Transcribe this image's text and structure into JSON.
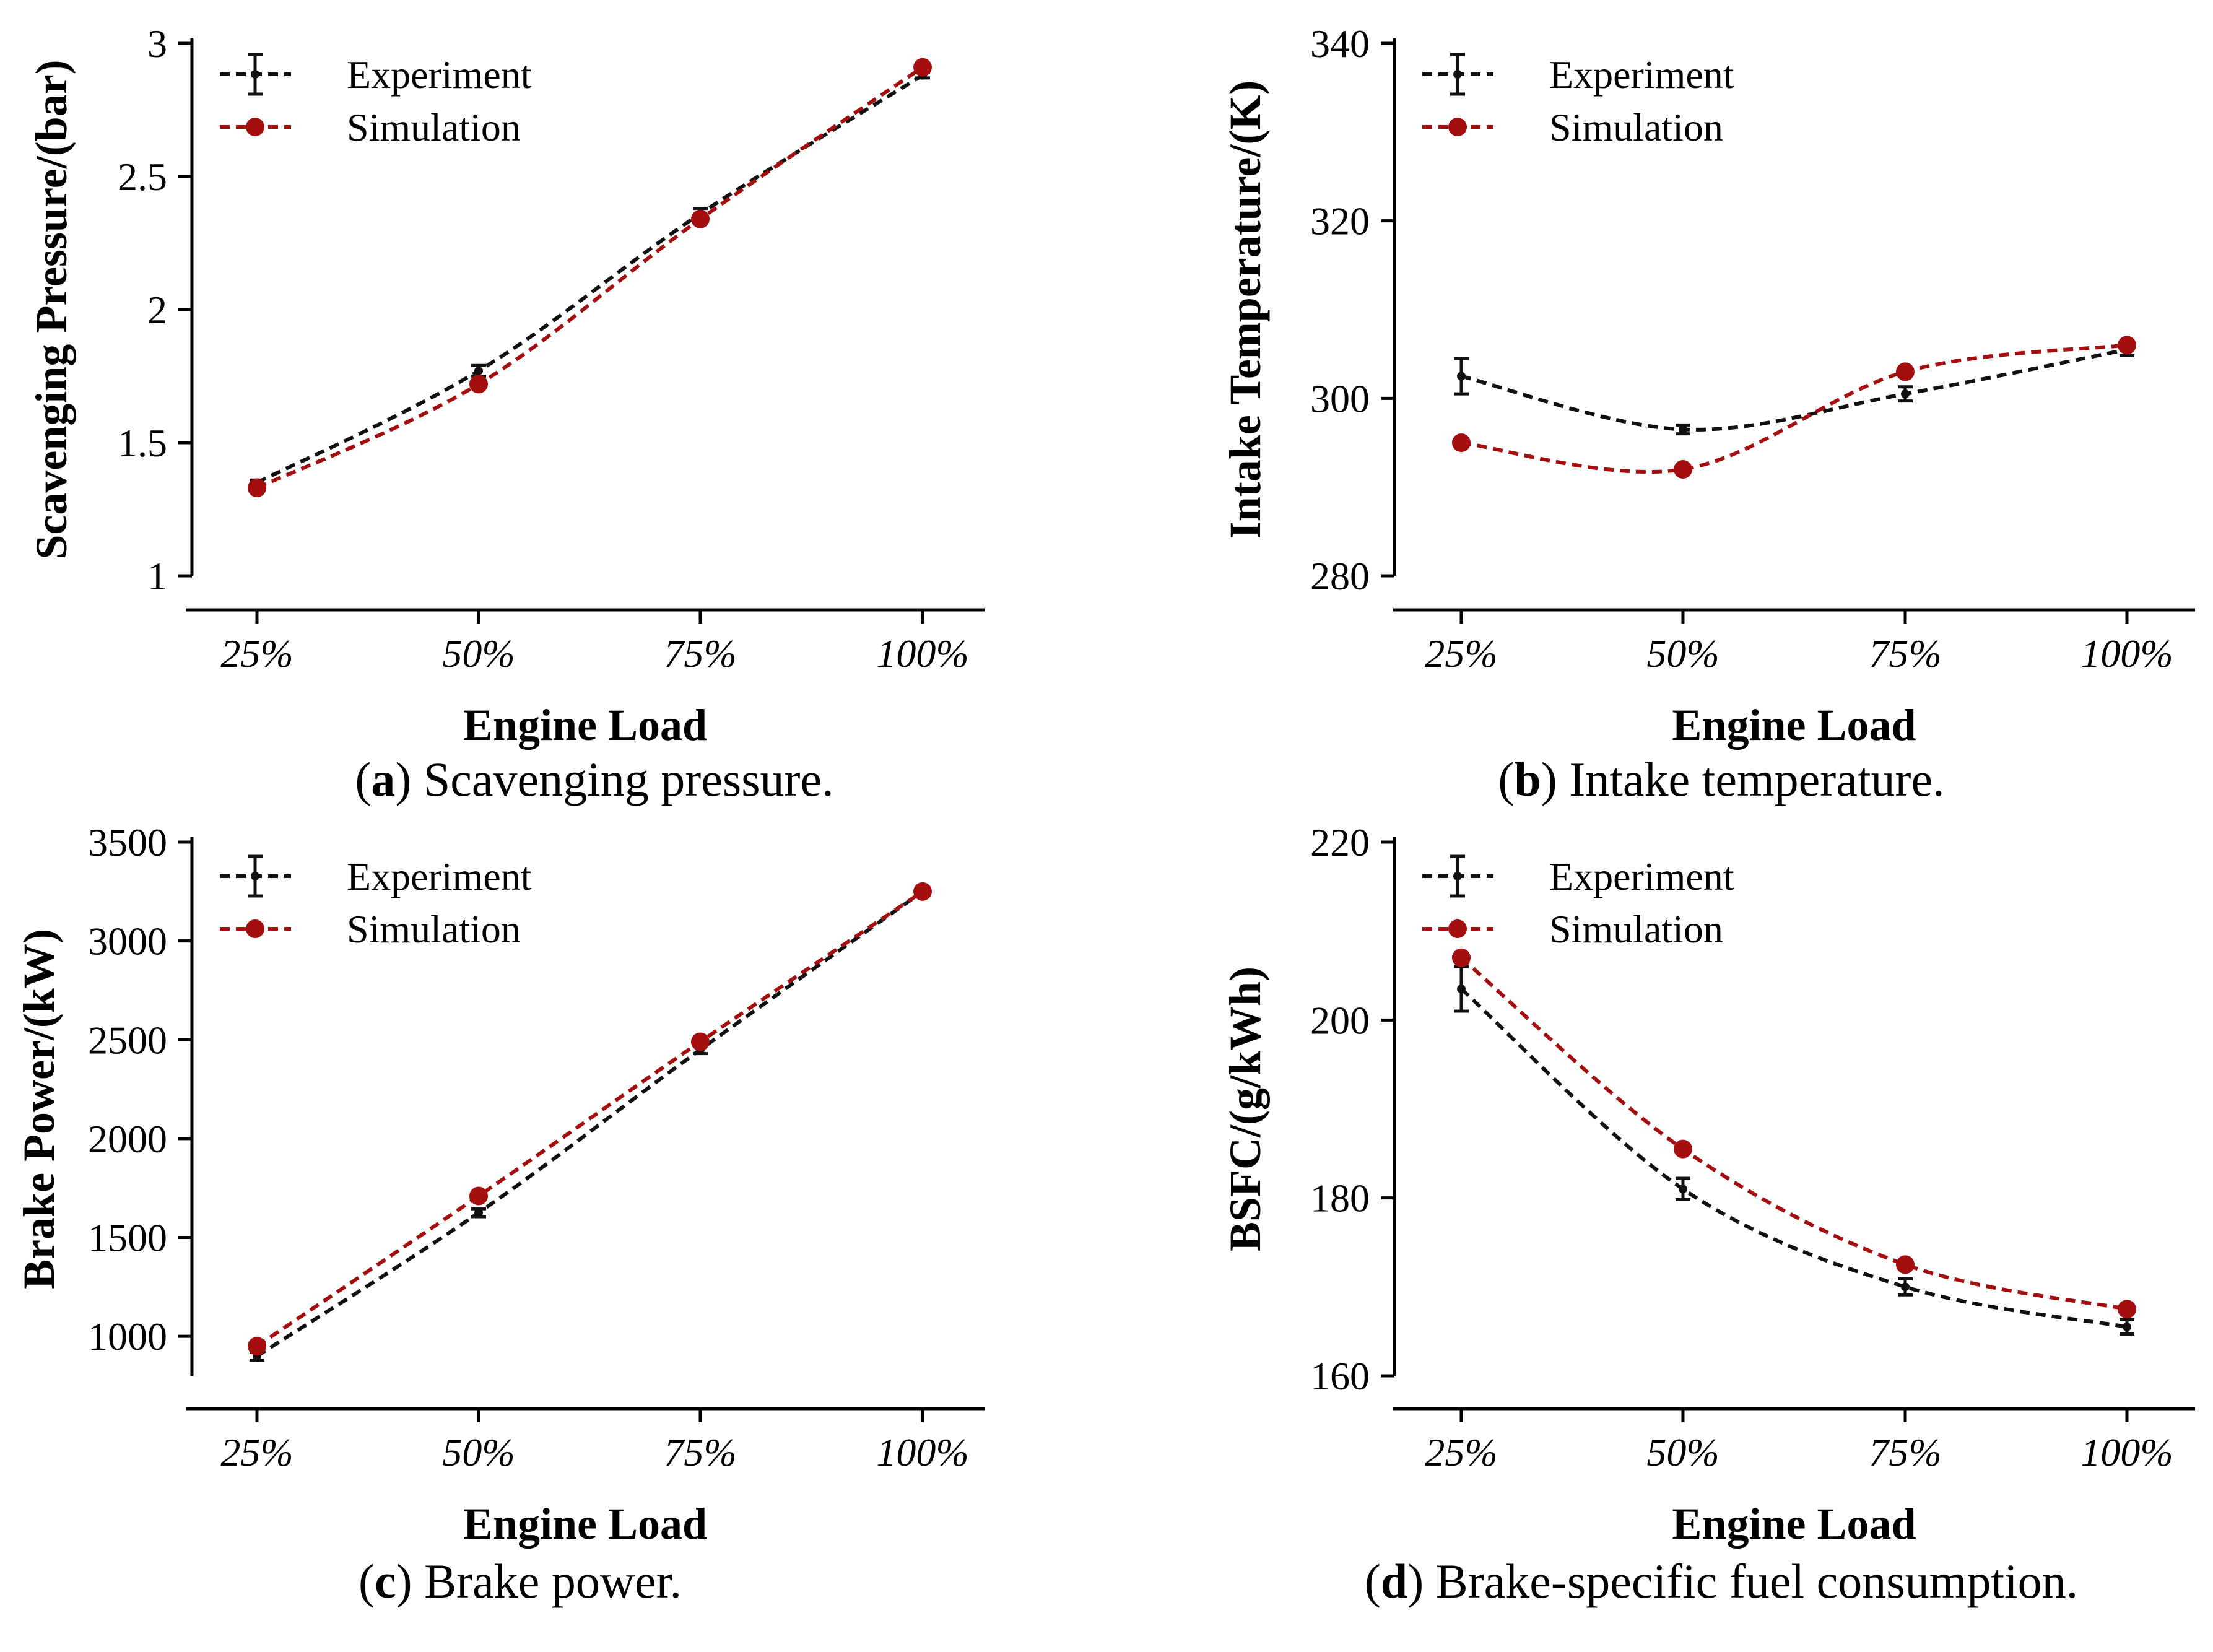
{
  "colors": {
    "experiment": "#111111",
    "simulation": "#a50e0e",
    "axis": "#000000"
  },
  "legend": {
    "experiment": "Experiment",
    "simulation": "Simulation"
  },
  "chart_data": [
    {
      "type": "line",
      "id": "a",
      "caption_letter": "a",
      "caption_text": "Scavenging pressure.",
      "xlabel": "Engine Load",
      "ylabel": "Scavenging Pressure/(bar)",
      "categories": [
        "25%",
        "50%",
        "75%",
        "100%"
      ],
      "ylim": [
        1,
        3
      ],
      "yticks": [
        1,
        1.5,
        2,
        2.5,
        3
      ],
      "ytick_labels": [
        "1",
        "1.5",
        "2",
        "2.5",
        "3"
      ],
      "series": [
        {
          "name": "Experiment",
          "values": [
            1.35,
            1.77,
            2.36,
            2.88
          ],
          "errors": [
            0.01,
            0.02,
            0.02,
            0.01
          ]
        },
        {
          "name": "Simulation",
          "values": [
            1.33,
            1.72,
            2.34,
            2.91
          ]
        }
      ]
    },
    {
      "type": "line",
      "id": "b",
      "caption_letter": "b",
      "caption_text": "Intake temperature.",
      "xlabel": "Engine Load",
      "ylabel": "Intake Temperature/(K)",
      "categories": [
        "25%",
        "50%",
        "75%",
        "100%"
      ],
      "ylim": [
        280,
        340
      ],
      "yticks": [
        280,
        300,
        320,
        340
      ],
      "ytick_labels": [
        "280",
        "300",
        "320",
        "340"
      ],
      "series": [
        {
          "name": "Experiment",
          "values": [
            302.5,
            296.5,
            300.5,
            305.5
          ],
          "errors": [
            2.0,
            0.5,
            0.8,
            0.7
          ]
        },
        {
          "name": "Simulation",
          "values": [
            295,
            292,
            303,
            306
          ]
        }
      ]
    },
    {
      "type": "line",
      "id": "c",
      "caption_letter": "c",
      "caption_text": "Brake power.",
      "xlabel": "Engine Load",
      "ylabel": "Brake Power/(kW)",
      "categories": [
        "25%",
        "50%",
        "75%",
        "100%"
      ],
      "ylim": [
        800,
        3500
      ],
      "yticks": [
        1000,
        1500,
        2000,
        2500,
        3000,
        3500
      ],
      "ytick_labels": [
        "1000",
        "1500",
        "2000",
        "2500",
        "3000",
        "3500"
      ],
      "series": [
        {
          "name": "Experiment",
          "values": [
            900,
            1625,
            2450,
            3250
          ],
          "errors": [
            20,
            20,
            20,
            20
          ]
        },
        {
          "name": "Simulation",
          "values": [
            950,
            1710,
            2490,
            3250
          ]
        }
      ]
    },
    {
      "type": "line",
      "id": "d",
      "caption_letter": "d",
      "caption_text": "Brake-specific fuel consumption.",
      "xlabel": "Engine Load",
      "ylabel": "BSFC/(g/kWh)",
      "categories": [
        "25%",
        "50%",
        "75%",
        "100%"
      ],
      "ylim": [
        160,
        220
      ],
      "yticks": [
        160,
        180,
        200,
        220
      ],
      "ytick_labels": [
        "160",
        "180",
        "200",
        "220"
      ],
      "series": [
        {
          "name": "Experiment",
          "values": [
            203.5,
            181,
            170,
            165.5
          ],
          "errors": [
            2.5,
            1.2,
            0.9,
            0.8
          ]
        },
        {
          "name": "Simulation",
          "values": [
            207,
            185.5,
            172.5,
            167.5
          ]
        }
      ]
    }
  ]
}
